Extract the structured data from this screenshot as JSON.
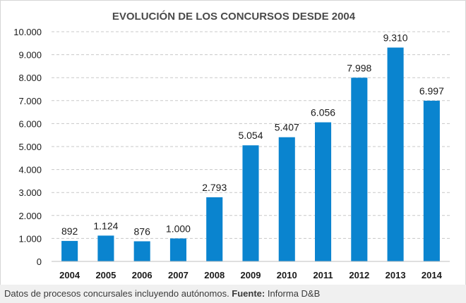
{
  "chart_data": {
    "type": "bar",
    "title": "EVOLUCIÓN DE LOS CONCURSOS DESDE 2004",
    "xlabel": "",
    "ylabel": "",
    "categories": [
      "2004",
      "2005",
      "2006",
      "2007",
      "2008",
      "2009",
      "2010",
      "2011",
      "2012",
      "2013",
      "2014"
    ],
    "values": [
      892,
      1124,
      876,
      1000,
      2793,
      5054,
      5407,
      6056,
      7998,
      9310,
      6997
    ],
    "value_labels": [
      "892",
      "1.124",
      "876",
      "1.000",
      "2.793",
      "5.054",
      "5.407",
      "6.056",
      "7.998",
      "9.310",
      "6.997"
    ],
    "ylim": [
      0,
      10000
    ],
    "yticks": [
      0,
      1000,
      2000,
      3000,
      4000,
      5000,
      6000,
      7000,
      8000,
      9000,
      10000
    ],
    "ytick_labels": [
      "0",
      "1.000",
      "2.000",
      "3.000",
      "4.000",
      "5.000",
      "6.000",
      "7.000",
      "8.000",
      "9.000",
      "10.000"
    ],
    "grid": true,
    "legend": "none",
    "bar_color": "#0a84cf",
    "gridline_color": "#c8c8c8"
  },
  "caption": {
    "text": "Datos de procesos concursales incluyendo autónomos. ",
    "source_label": "Fuente:",
    "source_value": " Informa D&B"
  }
}
